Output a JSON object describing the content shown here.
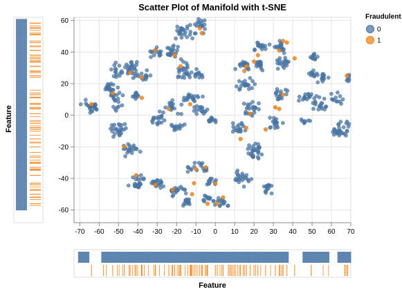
{
  "chart_data": {
    "type": "scatter",
    "title": "Scatter Plot of Manifold with t-SNE",
    "xlabel": "",
    "ylabel": "",
    "xlim": [
      -73,
      70
    ],
    "ylim": [
      -68,
      62
    ],
    "x_ticks": [
      -70,
      -60,
      -50,
      -40,
      -30,
      -20,
      -10,
      0,
      10,
      20,
      30,
      40,
      50,
      60,
      70
    ],
    "y_ticks": [
      -60,
      -40,
      -20,
      0,
      20,
      40,
      60
    ],
    "grid": true,
    "legend": {
      "title": "Fraudulent",
      "placement": "top-right",
      "entries": [
        {
          "label": "0",
          "color": "#4c78a8"
        },
        {
          "label": "1",
          "color": "#f58518"
        }
      ]
    },
    "marginals": {
      "y_strip_label": "Feature",
      "x_strip_label": "Feature",
      "x_gaps_class0": [
        [
          -73,
          -71
        ],
        [
          -65,
          -59
        ],
        [
          38,
          45
        ],
        [
          59,
          63
        ]
      ],
      "y_gaps_class0": [
        [
          62,
          68
        ]
      ]
    },
    "series": [
      {
        "name": "0",
        "color": "#4c78a8",
        "clusters": [
          {
            "x": -64,
            "y": 5,
            "sx": 3,
            "sy": 3,
            "n": 22
          },
          {
            "x": -55,
            "y": 17,
            "sx": 2,
            "sy": 3,
            "n": 18
          },
          {
            "x": -51,
            "y": 10,
            "sx": 2,
            "sy": 5,
            "n": 20
          },
          {
            "x": -51,
            "y": 28,
            "sx": 2,
            "sy": 4,
            "n": 14
          },
          {
            "x": -44,
            "y": 30,
            "sx": 3,
            "sy": 3,
            "n": 24
          },
          {
            "x": -37,
            "y": 25,
            "sx": 3,
            "sy": 2,
            "n": 16
          },
          {
            "x": -41,
            "y": 12,
            "sx": 2,
            "sy": 2,
            "n": 12
          },
          {
            "x": -31,
            "y": 40,
            "sx": 3,
            "sy": 2,
            "n": 14
          },
          {
            "x": -21,
            "y": 40,
            "sx": 3,
            "sy": 3,
            "n": 20
          },
          {
            "x": -16,
            "y": 52,
            "sx": 4,
            "sy": 3,
            "n": 26
          },
          {
            "x": -7,
            "y": 57,
            "sx": 2,
            "sy": 3,
            "n": 18
          },
          {
            "x": -16,
            "y": 28,
            "sx": 3,
            "sy": 4,
            "n": 24
          },
          {
            "x": -9,
            "y": 26,
            "sx": 2,
            "sy": 2,
            "n": 12
          },
          {
            "x": -12,
            "y": 11,
            "sx": 4,
            "sy": 2,
            "n": 20
          },
          {
            "x": -22,
            "y": 5,
            "sx": 3,
            "sy": 3,
            "n": 16
          },
          {
            "x": -30,
            "y": -2,
            "sx": 3,
            "sy": 3,
            "n": 18
          },
          {
            "x": -21,
            "y": -8,
            "sx": 3,
            "sy": 2,
            "n": 14
          },
          {
            "x": -8,
            "y": 3,
            "sx": 3,
            "sy": 2,
            "n": 16
          },
          {
            "x": -2,
            "y": -3,
            "sx": 2,
            "sy": 2,
            "n": 12
          },
          {
            "x": -50,
            "y": -10,
            "sx": 3,
            "sy": 4,
            "n": 24
          },
          {
            "x": -44,
            "y": -22,
            "sx": 3,
            "sy": 3,
            "n": 20
          },
          {
            "x": -40,
            "y": -42,
            "sx": 3,
            "sy": 3,
            "n": 24
          },
          {
            "x": -30,
            "y": -43,
            "sx": 3,
            "sy": 2,
            "n": 18
          },
          {
            "x": -20,
            "y": -48,
            "sx": 3,
            "sy": 2,
            "n": 18
          },
          {
            "x": -15,
            "y": -55,
            "sx": 2,
            "sy": 2,
            "n": 14
          },
          {
            "x": -3,
            "y": -53,
            "sx": 3,
            "sy": 2,
            "n": 14
          },
          {
            "x": 4,
            "y": -55,
            "sx": 3,
            "sy": 2,
            "n": 14
          },
          {
            "x": -9,
            "y": -33,
            "sx": 3,
            "sy": 3,
            "n": 18
          },
          {
            "x": -2,
            "y": -42,
            "sx": 2,
            "sy": 2,
            "n": 12
          },
          {
            "x": 14,
            "y": -40,
            "sx": 3,
            "sy": 4,
            "n": 22
          },
          {
            "x": 21,
            "y": -22,
            "sx": 3,
            "sy": 5,
            "n": 28
          },
          {
            "x": 27,
            "y": -47,
            "sx": 2,
            "sy": 3,
            "n": 14
          },
          {
            "x": 12,
            "y": -8,
            "sx": 3,
            "sy": 3,
            "n": 18
          },
          {
            "x": 19,
            "y": 3,
            "sx": 3,
            "sy": 4,
            "n": 22
          },
          {
            "x": 31,
            "y": -5,
            "sx": 3,
            "sy": 3,
            "n": 18
          },
          {
            "x": 34,
            "y": 13,
            "sx": 3,
            "sy": 3,
            "n": 16
          },
          {
            "x": 15,
            "y": 20,
            "sx": 3,
            "sy": 3,
            "n": 20
          },
          {
            "x": 23,
            "y": 32,
            "sx": 2,
            "sy": 3,
            "n": 16
          },
          {
            "x": 24,
            "y": 44,
            "sx": 3,
            "sy": 2,
            "n": 16
          },
          {
            "x": 14,
            "y": 32,
            "sx": 3,
            "sy": 2,
            "n": 16
          },
          {
            "x": 33,
            "y": 43,
            "sx": 3,
            "sy": 2,
            "n": 20
          },
          {
            "x": 36,
            "y": 33,
            "sx": 3,
            "sy": 2,
            "n": 18
          },
          {
            "x": 51,
            "y": 37,
            "sx": 2,
            "sy": 2,
            "n": 12
          },
          {
            "x": 50,
            "y": 26,
            "sx": 2,
            "sy": 2,
            "n": 12
          },
          {
            "x": 56,
            "y": 24,
            "sx": 2,
            "sy": 3,
            "n": 14
          },
          {
            "x": 47,
            "y": 11,
            "sx": 3,
            "sy": 2,
            "n": 16
          },
          {
            "x": 55,
            "y": 8,
            "sx": 3,
            "sy": 3,
            "n": 18
          },
          {
            "x": 63,
            "y": 10,
            "sx": 2,
            "sy": 3,
            "n": 12
          },
          {
            "x": 69,
            "y": 24,
            "sx": 1,
            "sy": 2,
            "n": 8
          },
          {
            "x": 47,
            "y": -3,
            "sx": 2,
            "sy": 2,
            "n": 8
          },
          {
            "x": 66,
            "y": -8,
            "sx": 3,
            "sy": 4,
            "n": 18
          },
          {
            "x": 62,
            "y": -10,
            "sx": 2,
            "sy": 2,
            "n": 10
          }
        ]
      },
      {
        "name": "1",
        "color": "#f58518",
        "points": [
          [
            -64,
            7
          ],
          [
            -53,
            14
          ],
          [
            -44,
            27
          ],
          [
            -38,
            24
          ],
          [
            -31,
            41
          ],
          [
            -21,
            38
          ],
          [
            -8,
            55
          ],
          [
            -7,
            52
          ],
          [
            -18,
            31
          ],
          [
            -13,
            7
          ],
          [
            -24,
            4
          ],
          [
            -38,
            11
          ],
          [
            -47,
            -20
          ],
          [
            -41,
            -38
          ],
          [
            -31,
            -44
          ],
          [
            -22,
            -47
          ],
          [
            -12,
            -50
          ],
          [
            -4,
            -56
          ],
          [
            1,
            -56
          ],
          [
            -10,
            -34
          ],
          [
            -5,
            -33
          ],
          [
            0,
            -43
          ],
          [
            -11,
            -43
          ],
          [
            13,
            -15
          ],
          [
            16,
            -8
          ],
          [
            18,
            1
          ],
          [
            26,
            -9
          ],
          [
            33,
            4
          ],
          [
            35,
            13
          ],
          [
            31,
            5
          ],
          [
            15,
            28
          ],
          [
            16,
            31
          ],
          [
            20,
            34
          ],
          [
            22,
            38
          ],
          [
            33,
            41
          ],
          [
            35,
            47
          ],
          [
            37,
            46
          ],
          [
            41,
            36
          ],
          [
            68,
            25
          ],
          [
            4,
            -52
          ]
        ]
      }
    ]
  }
}
